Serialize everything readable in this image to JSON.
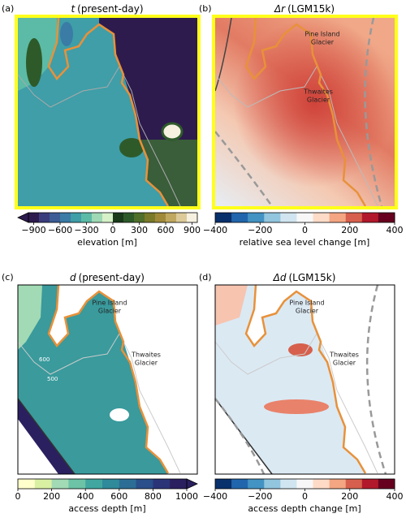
{
  "panels": [
    {
      "label": "(a)",
      "symbol": "t",
      "title": "(present-day)",
      "colorbar": {
        "label": "elevation [m]",
        "lim": [
          -960,
          960
        ],
        "extend": "min",
        "ticks": [
          {
            "value": -900,
            "label": "−900"
          },
          {
            "value": -600,
            "label": "−600"
          },
          {
            "value": -300,
            "label": "−300"
          },
          0,
          300,
          600,
          900
        ],
        "colors": [
          "#2d1b4e",
          "#3a3d7c",
          "#3c5c96",
          "#3a7ca6",
          "#3f9ea8",
          "#5cbba6",
          "#9fd8b4",
          "#d6f0c8",
          "#1a3a1a",
          "#2e5a2a",
          "#4f6f2a",
          "#7a7a2a",
          "#a08a3a",
          "#c0a860",
          "#dcca9a",
          "#f5f0e0"
        ]
      },
      "annotations": []
    },
    {
      "label": "(b)",
      "symbol": "Δr",
      "title": "(LGM15k)",
      "colorbar": {
        "label": "relative sea level change [m]",
        "lim": [
          -400,
          400
        ],
        "extend": "neither",
        "ticks": [
          {
            "value": -400,
            "label": "−400"
          },
          {
            "value": -200,
            "label": "−200"
          },
          0,
          200,
          400
        ],
        "colors": [
          "#08306b",
          "#2166ac",
          "#4393c3",
          "#92c5de",
          "#d1e5f0",
          "#f7f7f7",
          "#fddbc7",
          "#f4a582",
          "#d6604d",
          "#b2182b",
          "#67001f"
        ]
      },
      "annotations": [
        {
          "lines": [
            "Pine Island",
            "Glacier"
          ]
        },
        {
          "lines": [
            "Thwaites",
            "Glacier"
          ]
        }
      ]
    },
    {
      "label": "(c)",
      "symbol": "d",
      "title": "(present-day)",
      "colorbar": {
        "label": "access depth [m]",
        "lim": [
          0,
          1000
        ],
        "extend": "max",
        "ticks": [
          0,
          200,
          400,
          600,
          800,
          1000
        ],
        "colors": [
          "#ffffcc",
          "#d9f0a3",
          "#a1dab4",
          "#6cc3a6",
          "#41a6a0",
          "#2f8a9a",
          "#2c6d95",
          "#2a4f8a",
          "#2c3478",
          "#2a2060"
        ]
      },
      "annotations": [
        {
          "lines": [
            "Pine Island",
            "Glacier"
          ]
        },
        {
          "lines": [
            "Thwaites",
            "Glacier"
          ]
        }
      ],
      "contour_labels": [
        "600",
        "500"
      ]
    },
    {
      "label": "(d)",
      "symbol": "Δd",
      "title": "(LGM15k)",
      "colorbar": {
        "label": "access depth change [m]",
        "lim": [
          -400,
          400
        ],
        "extend": "neither",
        "ticks": [
          {
            "value": -400,
            "label": "−400"
          },
          {
            "value": -200,
            "label": "−200"
          },
          0,
          200,
          400
        ],
        "colors": [
          "#08306b",
          "#2166ac",
          "#4393c3",
          "#92c5de",
          "#d1e5f0",
          "#f7f7f7",
          "#fddbc7",
          "#f4a582",
          "#d6604d",
          "#b2182b",
          "#67001f"
        ]
      },
      "annotations": [
        {
          "lines": [
            "Pine Island",
            "Glacier"
          ]
        },
        {
          "lines": [
            "Thwaites",
            "Glacier"
          ]
        }
      ]
    }
  ]
}
